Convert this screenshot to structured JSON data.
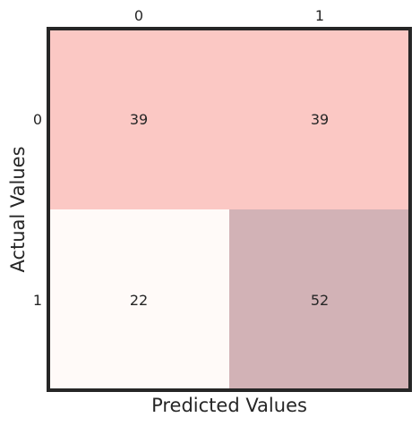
{
  "chart_data": {
    "type": "heatmap",
    "title": "",
    "xlabel": "Predicted Values",
    "ylabel": "Actual Values",
    "x_categories": [
      "0",
      "1"
    ],
    "y_categories": [
      "0",
      "1"
    ],
    "values": [
      [
        39,
        39
      ],
      [
        22,
        52
      ]
    ],
    "cell_colors": [
      [
        "#fbc8c4",
        "#fbc8c4"
      ],
      [
        "#fffaf8",
        "#d2b2b6"
      ]
    ],
    "x_ticks_position": "top",
    "grid": false,
    "frame_color": "#262626"
  }
}
